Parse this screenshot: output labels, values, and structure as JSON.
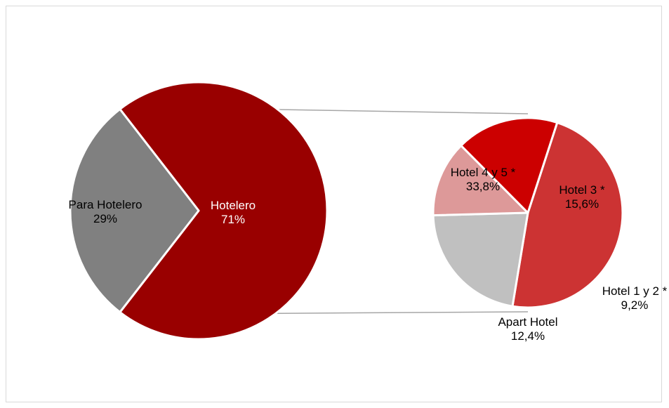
{
  "chart_data": {
    "type": "pie",
    "subtype": "pie-of-pie",
    "main": {
      "slices": [
        {
          "name": "Hotelero",
          "value": 71,
          "label": "Hotelero",
          "value_label": "71%",
          "color": "#990000",
          "text_color": "#ffffff"
        },
        {
          "name": "Para Hotelero",
          "value": 29,
          "label": "Para Hotelero",
          "value_label": "29%",
          "color": "#808080",
          "text_color": "#000000"
        }
      ]
    },
    "secondary": {
      "parent": "Hotelero",
      "slices": [
        {
          "name": "Hotel 4 y 5 *",
          "value": 33.8,
          "label": "Hotel 4 y 5 *",
          "value_label": "33,8%",
          "color": "#cc3333",
          "text_color": "#000000"
        },
        {
          "name": "Hotel 3 *",
          "value": 15.6,
          "label": "Hotel 3 *",
          "value_label": "15,6%",
          "color": "#c0c0c0",
          "text_color": "#000000"
        },
        {
          "name": "Hotel 1 y 2 *",
          "value": 9.2,
          "label": "Hotel 1 y 2 *",
          "value_label": "9,2%",
          "color": "#dd9999",
          "text_color": "#000000"
        },
        {
          "name": "Apart Hotel",
          "value": 12.4,
          "label": "Apart Hotel",
          "value_label": "12,4%",
          "color": "#cc0000",
          "text_color": "#000000"
        }
      ]
    },
    "connector_color": "#a6a6a6",
    "title": "",
    "legend": "none"
  }
}
